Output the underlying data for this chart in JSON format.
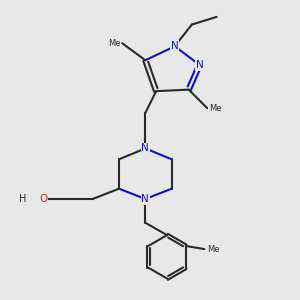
{
  "bg_color": "#e8e8e8",
  "bond_color": "#2a2a2a",
  "nitrogen_color": "#1010cc",
  "oxygen_color": "#cc2020",
  "line_width": 1.5,
  "fig_size": [
    3.0,
    3.0
  ],
  "dpi": 100,
  "xlim": [
    0.5,
    9.5
  ],
  "ylim": [
    0.2,
    9.8
  ]
}
